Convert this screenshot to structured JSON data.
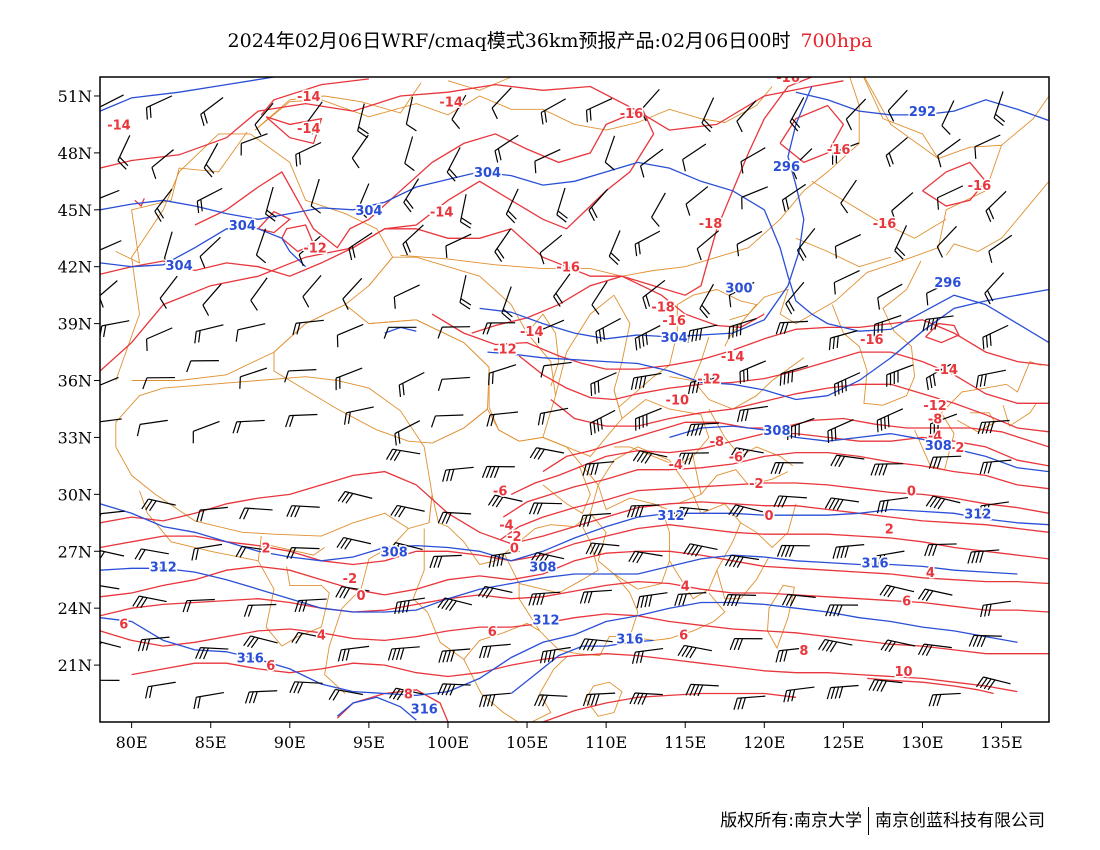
{
  "title": {
    "main": "2024年02月06日WRF/cmaq模式36km预报产品:02月06日00时",
    "level": "700hpa"
  },
  "footer": {
    "left": "版权所有:南京大学",
    "right": "南京创蓝科技有限公司"
  },
  "colors": {
    "temperature_contour": "#e8363c",
    "geopotential_contour": "#2a4fd6",
    "boundaries": "#e09030",
    "wind_barbs": "#000000",
    "title_level": "#e8222a"
  },
  "axes": {
    "lon_ticks": [
      "80E",
      "85E",
      "90E",
      "95E",
      "100E",
      "105E",
      "110E",
      "115E",
      "120E",
      "125E",
      "130E",
      "135E"
    ],
    "lat_ticks": [
      "51N",
      "48N",
      "45N",
      "42N",
      "39N",
      "36N",
      "33N",
      "30N",
      "27N",
      "24N",
      "21N"
    ],
    "lon_values": [
      80,
      85,
      90,
      95,
      100,
      105,
      110,
      115,
      120,
      125,
      130,
      135
    ],
    "lat_values": [
      51,
      48,
      45,
      42,
      39,
      36,
      33,
      30,
      27,
      24,
      21
    ],
    "lon_range": [
      78,
      138
    ],
    "lat_range": [
      18,
      52
    ]
  },
  "temperature_labels": [
    {
      "text": "-14",
      "lon": 91.2,
      "lat": 51.0
    },
    {
      "text": "-14",
      "lon": 79.2,
      "lat": 49.5
    },
    {
      "text": "-14",
      "lon": 91.2,
      "lat": 49.3
    },
    {
      "text": "-14",
      "lon": 100.2,
      "lat": 50.7
    },
    {
      "text": "-16",
      "lon": 111.6,
      "lat": 50.1
    },
    {
      "text": "-16",
      "lon": 121.5,
      "lat": 52.0
    },
    {
      "text": "-16",
      "lon": 124.7,
      "lat": 48.2
    },
    {
      "text": "-16",
      "lon": 133.6,
      "lat": 46.3
    },
    {
      "text": "-14",
      "lon": 99.6,
      "lat": 44.9
    },
    {
      "text": "-12",
      "lon": 91.6,
      "lat": 43.0
    },
    {
      "text": "-18",
      "lon": 116.6,
      "lat": 44.3
    },
    {
      "text": "-16",
      "lon": 127.6,
      "lat": 44.3
    },
    {
      "text": "-16",
      "lon": 107.6,
      "lat": 42.0
    },
    {
      "text": "-18",
      "lon": 113.6,
      "lat": 39.9
    },
    {
      "text": "-16",
      "lon": 114.3,
      "lat": 39.2
    },
    {
      "text": "-14",
      "lon": 105.3,
      "lat": 38.6
    },
    {
      "text": "-12",
      "lon": 103.6,
      "lat": 37.7
    },
    {
      "text": "-14",
      "lon": 118.0,
      "lat": 37.3
    },
    {
      "text": "-16",
      "lon": 126.8,
      "lat": 38.2
    },
    {
      "text": "-14",
      "lon": 131.5,
      "lat": 36.6
    },
    {
      "text": "-12",
      "lon": 116.5,
      "lat": 36.1
    },
    {
      "text": "-10",
      "lon": 114.5,
      "lat": 35.0
    },
    {
      "text": "-12",
      "lon": 130.8,
      "lat": 34.7
    },
    {
      "text": "-8",
      "lon": 130.8,
      "lat": 34.0
    },
    {
      "text": "-4",
      "lon": 130.8,
      "lat": 33.1
    },
    {
      "text": "-2",
      "lon": 132.2,
      "lat": 32.5
    },
    {
      "text": "-8",
      "lon": 117.0,
      "lat": 32.8
    },
    {
      "text": "-6",
      "lon": 118.2,
      "lat": 32.0
    },
    {
      "text": "-4",
      "lon": 114.4,
      "lat": 31.6
    },
    {
      "text": "-2",
      "lon": 119.5,
      "lat": 30.6
    },
    {
      "text": "-6",
      "lon": 103.3,
      "lat": 30.2
    },
    {
      "text": "0",
      "lon": 129.3,
      "lat": 30.2
    },
    {
      "text": "0",
      "lon": 120.3,
      "lat": 28.9
    },
    {
      "text": "-4",
      "lon": 103.7,
      "lat": 28.4
    },
    {
      "text": "-2",
      "lon": 104.2,
      "lat": 27.8
    },
    {
      "text": "0",
      "lon": 104.2,
      "lat": 27.2
    },
    {
      "text": "2",
      "lon": 127.9,
      "lat": 28.2
    },
    {
      "text": "2",
      "lon": 88.5,
      "lat": 27.2
    },
    {
      "text": "-2",
      "lon": 93.8,
      "lat": 25.6
    },
    {
      "text": "0",
      "lon": 94.5,
      "lat": 24.7
    },
    {
      "text": "4",
      "lon": 130.5,
      "lat": 25.9
    },
    {
      "text": "4",
      "lon": 115.0,
      "lat": 25.2
    },
    {
      "text": "6",
      "lon": 129.0,
      "lat": 24.4
    },
    {
      "text": "6",
      "lon": 79.5,
      "lat": 23.2
    },
    {
      "text": "6",
      "lon": 102.8,
      "lat": 22.8
    },
    {
      "text": "4",
      "lon": 92.0,
      "lat": 22.6
    },
    {
      "text": "6",
      "lon": 114.9,
      "lat": 22.6
    },
    {
      "text": "8",
      "lon": 122.5,
      "lat": 21.8
    },
    {
      "text": "6",
      "lon": 88.8,
      "lat": 21.0
    },
    {
      "text": "8",
      "lon": 97.5,
      "lat": 19.5
    },
    {
      "text": "10",
      "lon": 128.8,
      "lat": 20.7
    }
  ],
  "geopotential_labels": [
    {
      "text": "292",
      "lon": 130.0,
      "lat": 50.2
    },
    {
      "text": "296",
      "lon": 121.4,
      "lat": 47.3
    },
    {
      "text": "304",
      "lon": 102.5,
      "lat": 47.0
    },
    {
      "text": "304",
      "lon": 95.0,
      "lat": 45.0
    },
    {
      "text": "304",
      "lon": 87.0,
      "lat": 44.2
    },
    {
      "text": "304",
      "lon": 83.0,
      "lat": 42.1
    },
    {
      "text": "296",
      "lon": 131.6,
      "lat": 41.2
    },
    {
      "text": "300",
      "lon": 118.4,
      "lat": 40.9
    },
    {
      "text": "304",
      "lon": 114.3,
      "lat": 38.3
    },
    {
      "text": "308",
      "lon": 120.8,
      "lat": 33.4
    },
    {
      "text": "308",
      "lon": 131.0,
      "lat": 32.6
    },
    {
      "text": "312",
      "lon": 114.1,
      "lat": 28.9
    },
    {
      "text": "312",
      "lon": 133.5,
      "lat": 29.0
    },
    {
      "text": "308",
      "lon": 96.6,
      "lat": 27.0
    },
    {
      "text": "308",
      "lon": 106.0,
      "lat": 26.2
    },
    {
      "text": "312",
      "lon": 82.0,
      "lat": 26.2
    },
    {
      "text": "316",
      "lon": 127.0,
      "lat": 26.4
    },
    {
      "text": "312",
      "lon": 106.2,
      "lat": 23.4
    },
    {
      "text": "316",
      "lon": 111.5,
      "lat": 22.4
    },
    {
      "text": "316",
      "lon": 87.5,
      "lat": 21.4
    },
    {
      "text": "316",
      "lon": 98.5,
      "lat": 18.7
    }
  ]
}
